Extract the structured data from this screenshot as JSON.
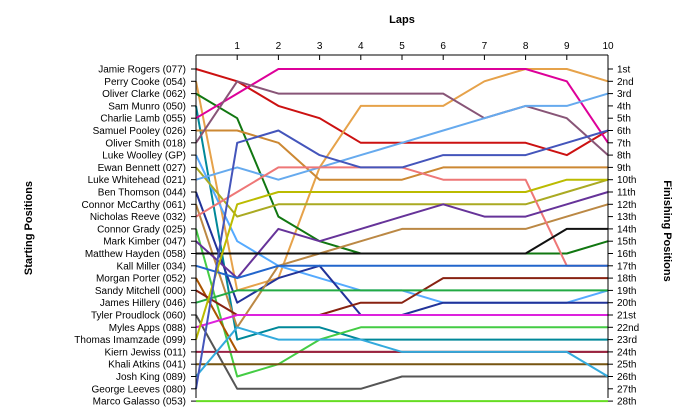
{
  "chart_data": {
    "type": "line",
    "title": "",
    "xlabel": "Laps",
    "ylabel_left": "Starting Positions",
    "ylabel_right": "Finishing Positions",
    "laps": [
      1,
      2,
      3,
      4,
      5,
      6,
      7,
      8,
      9,
      10
    ],
    "finishing_labels": [
      "1st",
      "2nd",
      "3rd",
      "4th",
      "5th",
      "6th",
      "7th",
      "8th",
      "9th",
      "10th",
      "11th",
      "12th",
      "13th",
      "14th",
      "15th",
      "16th",
      "17th",
      "18th",
      "19th",
      "20th",
      "21st",
      "22nd",
      "23rd",
      "24th",
      "25th",
      "26th",
      "27th",
      "28th"
    ],
    "series": [
      {
        "name": "Jamie Rogers (077)",
        "color": "#cc1111",
        "positions": [
          1,
          2,
          4,
          5,
          7,
          7,
          7,
          7,
          7,
          8,
          6
        ]
      },
      {
        "name": "Perry Cooke (054)",
        "color": "#e6a24a",
        "positions": [
          2,
          19,
          18,
          9,
          4,
          4,
          4,
          2,
          1,
          1,
          2
        ]
      },
      {
        "name": "Oliver Clarke (062)",
        "color": "#117711",
        "positions": [
          3,
          5,
          13,
          15,
          16,
          16,
          16,
          16,
          16,
          16,
          15
        ]
      },
      {
        "name": "Sam Munro (050)",
        "color": "#008899",
        "positions": [
          4,
          23,
          22,
          22,
          23,
          23,
          23,
          23,
          23,
          23,
          23
        ]
      },
      {
        "name": "Charlie Lamb (055)",
        "color": "#dd0099",
        "positions": [
          5,
          3,
          1,
          1,
          1,
          1,
          1,
          1,
          1,
          2,
          7
        ]
      },
      {
        "name": "Samuel Pooley (026)",
        "color": "#cc8833",
        "positions": [
          6,
          6,
          7,
          10,
          10,
          10,
          9,
          9,
          9,
          9,
          9
        ]
      },
      {
        "name": "Oliver Smith (018)",
        "color": "#885577",
        "positions": [
          7,
          2,
          3,
          3,
          3,
          3,
          3,
          5,
          4,
          5,
          8
        ]
      },
      {
        "name": "Luke Woolley (GP)",
        "color": "#55aaff",
        "positions": [
          8,
          15,
          17,
          18,
          19,
          19,
          20,
          20,
          20,
          20,
          19
        ]
      },
      {
        "name": "Ewan Bennett (027)",
        "color": "#aaaa22",
        "positions": [
          9,
          13,
          12,
          12,
          12,
          12,
          12,
          12,
          12,
          11,
          10
        ]
      },
      {
        "name": "Luke Whitehead (021)",
        "color": "#66aaee",
        "positions": [
          10,
          9,
          10,
          9,
          8,
          7,
          6,
          5,
          4,
          4,
          3
        ]
      },
      {
        "name": "Ben Thomson (044)",
        "color": "#223399",
        "positions": [
          11,
          20,
          18,
          17,
          21,
          21,
          20,
          20,
          20,
          20,
          20
        ]
      },
      {
        "name": "Connor McCarthy (061)",
        "color": "#bb8844",
        "positions": [
          12,
          22,
          17,
          16,
          15,
          14,
          14,
          14,
          14,
          13,
          12
        ]
      },
      {
        "name": "Nicholas Reeve (032)",
        "color": "#ee7777",
        "positions": [
          13,
          11,
          9,
          9,
          9,
          9,
          10,
          10,
          10,
          17,
          17
        ]
      },
      {
        "name": "Connor Grady (025)",
        "color": "#44cc44",
        "positions": [
          14,
          26,
          25,
          23,
          22,
          22,
          22,
          22,
          22,
          22,
          22
        ]
      },
      {
        "name": "Mark Kimber (047)",
        "color": "#663399",
        "positions": [
          15,
          18,
          14,
          15,
          14,
          13,
          12,
          13,
          13,
          12,
          11
        ]
      },
      {
        "name": "Matthew Hayden (058)",
        "color": "#111111",
        "positions": [
          16,
          16,
          16,
          16,
          16,
          16,
          16,
          16,
          16,
          14,
          14
        ]
      },
      {
        "name": "Kall Miller (034)",
        "color": "#2266cc",
        "positions": [
          17,
          18,
          17,
          17,
          17,
          17,
          17,
          17,
          17,
          17,
          17
        ]
      },
      {
        "name": "Morgan Porter (052)",
        "color": "#aa5500",
        "positions": [
          18,
          24,
          24,
          24,
          24,
          24,
          24,
          24,
          24,
          24,
          24
        ]
      },
      {
        "name": "Sandy Mitchell (000)",
        "color": "#882211",
        "positions": [
          19,
          21,
          21,
          21,
          20,
          20,
          18,
          18,
          18,
          18,
          18
        ]
      },
      {
        "name": "James Hillery (046)",
        "color": "#22aa44",
        "positions": [
          20,
          19,
          19,
          19,
          19,
          19,
          19,
          19,
          19,
          19,
          19
        ]
      },
      {
        "name": "Tyler Proudlock (060)",
        "color": "#555555",
        "positions": [
          21,
          27,
          27,
          27,
          27,
          26,
          26,
          26,
          26,
          26,
          26
        ]
      },
      {
        "name": "Myles Apps (088)",
        "color": "#dd22dd",
        "positions": [
          22,
          21,
          21,
          21,
          21,
          21,
          21,
          21,
          21,
          21,
          21
        ]
      },
      {
        "name": "Thomas Imamzade (099)",
        "color": "#bbbb00",
        "positions": [
          23,
          12,
          11,
          11,
          11,
          11,
          11,
          11,
          11,
          10,
          10
        ]
      },
      {
        "name": "Kiern Jewiss (011)",
        "color": "#992244",
        "positions": [
          24,
          24,
          24,
          24,
          24,
          24,
          24,
          24,
          24,
          24,
          24
        ]
      },
      {
        "name": "Khali Atkins (041)",
        "color": "#775511",
        "positions": [
          25,
          25,
          25,
          25,
          25,
          25,
          25,
          25,
          25,
          25,
          25
        ]
      },
      {
        "name": "Josh King (089)",
        "color": "#33aadd",
        "positions": [
          26,
          22,
          23,
          23,
          23,
          24,
          24,
          24,
          24,
          24,
          26
        ]
      },
      {
        "name": "George Leeves (080)",
        "color": "#4455bb",
        "positions": [
          27,
          7,
          6,
          8,
          9,
          9,
          8,
          8,
          8,
          7,
          6
        ]
      },
      {
        "name": "Marco Galasso (053)",
        "color": "#66dd22",
        "positions": [
          28,
          28,
          28,
          28,
          28,
          28,
          28,
          28,
          28,
          28,
          28
        ]
      }
    ]
  }
}
